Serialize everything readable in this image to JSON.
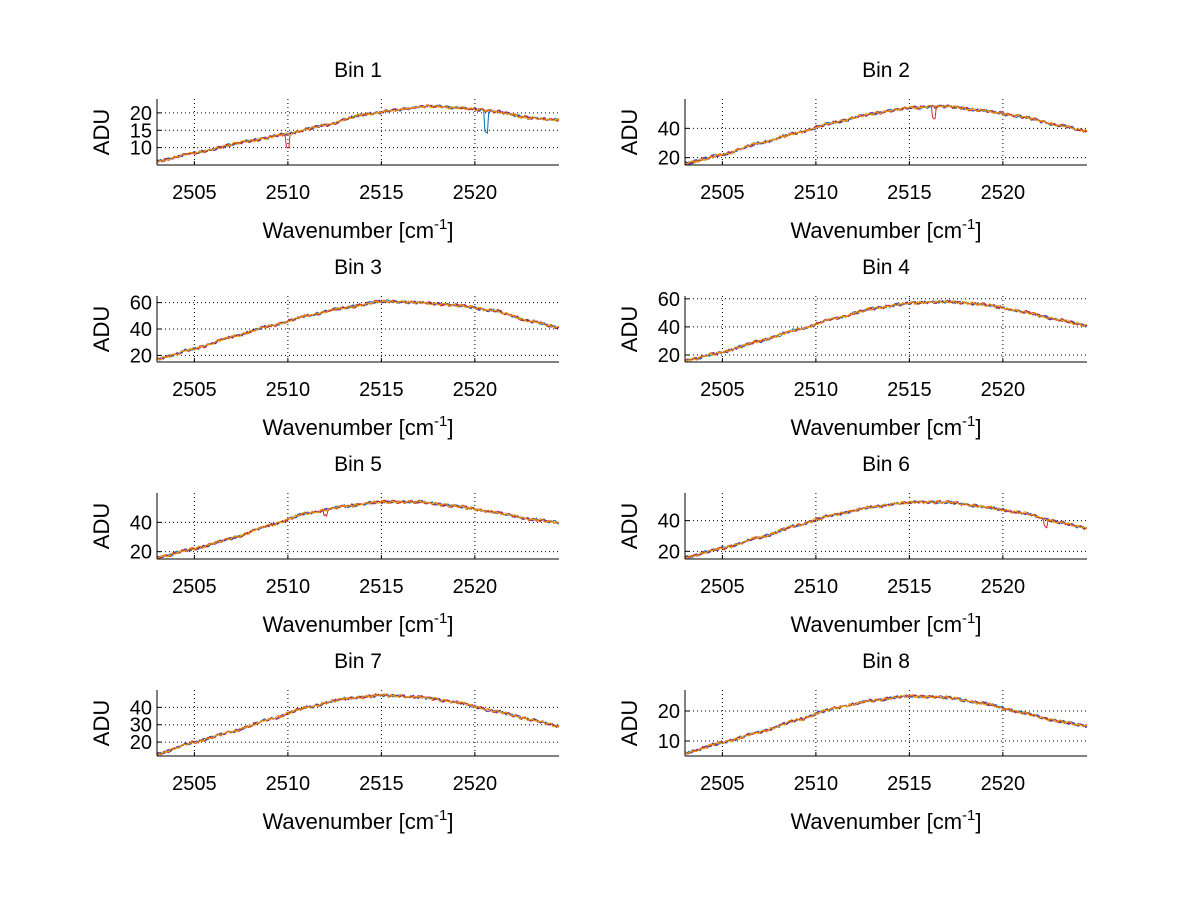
{
  "figure": {
    "colors": {
      "series_a": "#0072bd",
      "series_b": "#7030a0",
      "series_c": "#d62728",
      "series_d": "#e8a000"
    }
  },
  "chart_data": [
    {
      "type": "line",
      "title": "Bin 1",
      "xlabel": "Wavenumber [cm",
      "xlabel_sup": "-1",
      "xlabel_end": "]",
      "ylabel": "ADU",
      "xlim": [
        2503,
        2524.5
      ],
      "ylim": [
        5,
        24
      ],
      "xticks": [
        2505,
        2510,
        2515,
        2520
      ],
      "yticks": [
        10,
        15,
        20
      ],
      "grid": true,
      "curve": {
        "x": [
          2503,
          2505,
          2508,
          2510,
          2512,
          2514,
          2516,
          2517.5,
          2519,
          2521,
          2523,
          2524.5
        ],
        "y": [
          6,
          8.5,
          12,
          14,
          16.5,
          19.5,
          21,
          22,
          21.5,
          20.5,
          18.5,
          18
        ]
      },
      "dips": [
        {
          "x": 2510,
          "depth": 4,
          "series": 2
        },
        {
          "x": 2520.6,
          "depth": 6,
          "series": 0
        }
      ]
    },
    {
      "type": "line",
      "title": "Bin 2",
      "xlabel": "Wavenumber [cm",
      "xlabel_sup": "-1",
      "xlabel_end": "]",
      "ylabel": "ADU",
      "xlim": [
        2503,
        2524.5
      ],
      "ylim": [
        15,
        60
      ],
      "xticks": [
        2505,
        2510,
        2515,
        2520
      ],
      "yticks": [
        20,
        40
      ],
      "grid": true,
      "curve": {
        "x": [
          2503,
          2505,
          2507,
          2509,
          2511,
          2513,
          2515,
          2517,
          2519,
          2521,
          2523,
          2524.5
        ],
        "y": [
          16,
          22,
          30,
          37,
          44,
          50,
          54,
          55,
          52,
          48,
          42,
          38
        ]
      },
      "dips": [
        {
          "x": 2516.3,
          "depth": 7,
          "series": 2
        }
      ]
    },
    {
      "type": "line",
      "title": "Bin 3",
      "xlabel": "Wavenumber [cm",
      "xlabel_sup": "-1",
      "xlabel_end": "]",
      "ylabel": "ADU",
      "xlim": [
        2503,
        2524.5
      ],
      "ylim": [
        15,
        65
      ],
      "xticks": [
        2505,
        2510,
        2515,
        2520
      ],
      "yticks": [
        20,
        40,
        60
      ],
      "grid": true,
      "curve": {
        "x": [
          2503,
          2505,
          2507,
          2509,
          2511,
          2513,
          2515,
          2517,
          2519,
          2521,
          2523,
          2524.5
        ],
        "y": [
          17,
          25,
          34,
          42,
          50,
          56,
          61,
          60,
          58,
          54,
          46,
          41
        ]
      },
      "dips": []
    },
    {
      "type": "line",
      "title": "Bin 4",
      "xlabel": "Wavenumber [cm",
      "xlabel_sup": "-1",
      "xlabel_end": "]",
      "ylabel": "ADU",
      "xlim": [
        2503,
        2524.5
      ],
      "ylim": [
        15,
        62
      ],
      "xticks": [
        2505,
        2510,
        2515,
        2520
      ],
      "yticks": [
        20,
        40,
        60
      ],
      "grid": true,
      "curve": {
        "x": [
          2503,
          2505,
          2507,
          2509,
          2511,
          2513,
          2515,
          2517,
          2519,
          2521,
          2523,
          2524.5
        ],
        "y": [
          16,
          22,
          30,
          38,
          46,
          53,
          57,
          58,
          56,
          51,
          45,
          41
        ]
      },
      "dips": []
    },
    {
      "type": "line",
      "title": "Bin 5",
      "xlabel": "Wavenumber [cm",
      "xlabel_sup": "-1",
      "xlabel_end": "]",
      "ylabel": "ADU",
      "xlim": [
        2503,
        2524.5
      ],
      "ylim": [
        15,
        60
      ],
      "xticks": [
        2505,
        2510,
        2515,
        2520
      ],
      "yticks": [
        20,
        40
      ],
      "grid": true,
      "curve": {
        "x": [
          2503,
          2505,
          2507,
          2509,
          2511,
          2513,
          2515,
          2517,
          2519,
          2521,
          2523,
          2524.5
        ],
        "y": [
          16,
          22,
          29,
          38,
          46,
          51,
          54,
          54,
          51,
          47,
          42,
          40
        ]
      },
      "dips": [
        {
          "x": 2512,
          "depth": 4,
          "series": 2
        }
      ]
    },
    {
      "type": "line",
      "title": "Bin 6",
      "xlabel": "Wavenumber [cm",
      "xlabel_sup": "-1",
      "xlabel_end": "]",
      "ylabel": "ADU",
      "xlim": [
        2503,
        2524.5
      ],
      "ylim": [
        15,
        58
      ],
      "xticks": [
        2505,
        2510,
        2515,
        2520
      ],
      "yticks": [
        20,
        40
      ],
      "grid": true,
      "curve": {
        "x": [
          2503,
          2505,
          2507,
          2509,
          2511,
          2513,
          2515,
          2517,
          2519,
          2521,
          2523,
          2524.5
        ],
        "y": [
          16,
          22,
          29,
          37,
          44,
          49,
          52,
          52,
          49,
          45,
          39,
          35
        ]
      },
      "dips": [
        {
          "x": 2522.3,
          "depth": 5,
          "series": 2
        }
      ]
    },
    {
      "type": "line",
      "title": "Bin 7",
      "xlabel": "Wavenumber [cm",
      "xlabel_sup": "-1",
      "xlabel_end": "]",
      "ylabel": "ADU",
      "xlim": [
        2503,
        2524.5
      ],
      "ylim": [
        12,
        50
      ],
      "xticks": [
        2505,
        2510,
        2515,
        2520
      ],
      "yticks": [
        20,
        30,
        40
      ],
      "grid": true,
      "curve": {
        "x": [
          2503,
          2505,
          2507,
          2509,
          2511,
          2513,
          2515,
          2517,
          2519,
          2521,
          2523,
          2524.5
        ],
        "y": [
          13,
          20,
          26,
          33,
          40,
          45,
          47,
          46,
          43,
          38,
          33,
          29
        ]
      },
      "dips": []
    },
    {
      "type": "line",
      "title": "Bin 8",
      "xlabel": "Wavenumber [cm",
      "xlabel_sup": "-1",
      "xlabel_end": "]",
      "ylabel": "ADU",
      "xlim": [
        2503,
        2524.5
      ],
      "ylim": [
        5,
        27
      ],
      "xticks": [
        2505,
        2510,
        2515,
        2520
      ],
      "yticks": [
        10,
        20
      ],
      "grid": true,
      "curve": {
        "x": [
          2503,
          2505,
          2507,
          2509,
          2511,
          2513,
          2515,
          2517,
          2519,
          2521,
          2523,
          2524.5
        ],
        "y": [
          6,
          9.5,
          13,
          17,
          21,
          23.5,
          25,
          24.5,
          22.5,
          19.5,
          16.5,
          15
        ]
      },
      "dips": []
    }
  ]
}
